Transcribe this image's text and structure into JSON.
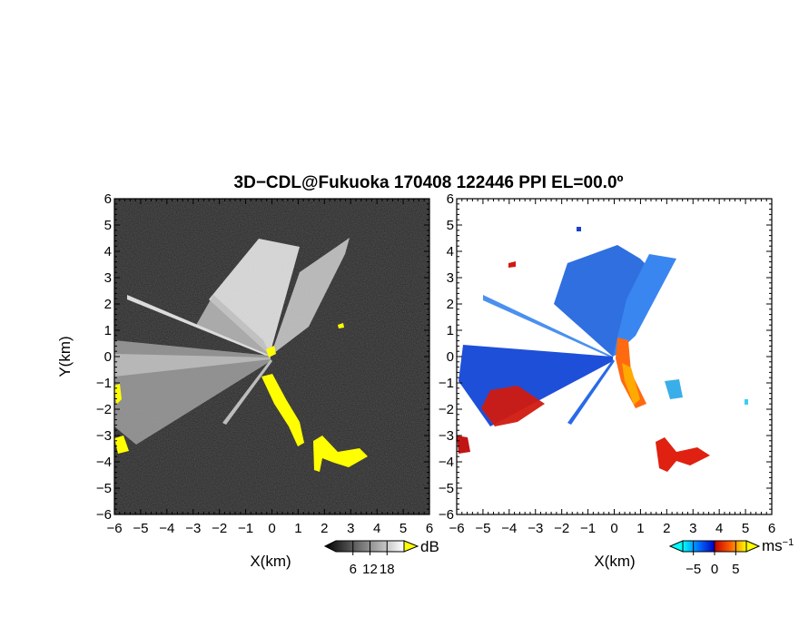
{
  "chart_data": {
    "type": "heatmap",
    "title": "3D−CDL@Fukuoka 170408 122446 PPI EL=00.0º",
    "panels": [
      {
        "field": "intensity",
        "xlabel": "X(km)",
        "ylabel": "Y(km)",
        "xlim": [
          -6,
          6
        ],
        "ylim": [
          -6,
          6
        ],
        "xticks": [
          "−6",
          "−5",
          "−4",
          "−3",
          "−2",
          "−1",
          "0",
          "1",
          "2",
          "3",
          "4",
          "5",
          "6"
        ],
        "yticks": [
          "−6",
          "−5",
          "−4",
          "−3",
          "−2",
          "−1",
          "0",
          "1",
          "2",
          "3",
          "4",
          "5",
          "6"
        ],
        "background": "#262626",
        "highlight_color": "#ffff00",
        "colorbar": {
          "unit": "dB",
          "range": [
            0,
            24
          ],
          "ticks": [
            "6",
            "12",
            "18"
          ],
          "colors": [
            "#000000",
            "#ffffff"
          ],
          "over_color": "#ffff00"
        }
      },
      {
        "field": "radial velocity",
        "xlabel": "X(km)",
        "xlim": [
          -6,
          6
        ],
        "ylim": [
          -6,
          6
        ],
        "xticks": [
          "−6",
          "−5",
          "−4",
          "−3",
          "−2",
          "−1",
          "0",
          "1",
          "2",
          "3",
          "4",
          "5",
          "6"
        ],
        "yticks": [
          "−6",
          "−5",
          "−4",
          "−3",
          "−2",
          "−1",
          "0",
          "1",
          "2",
          "3",
          "4",
          "5",
          "6"
        ],
        "background": "#ffffff",
        "colorbar": {
          "unit": "ms",
          "unit_exponent": "−1",
          "range": [
            -7.5,
            7.5
          ],
          "ticks": [
            "−5",
            "0",
            "5"
          ],
          "colors": [
            "#00ffff",
            "#0060ff",
            "#0000cc",
            "#cc0000",
            "#ff6000",
            "#ffff00"
          ],
          "under_color": "#00ffff",
          "over_color": "#ffff00"
        }
      }
    ]
  }
}
